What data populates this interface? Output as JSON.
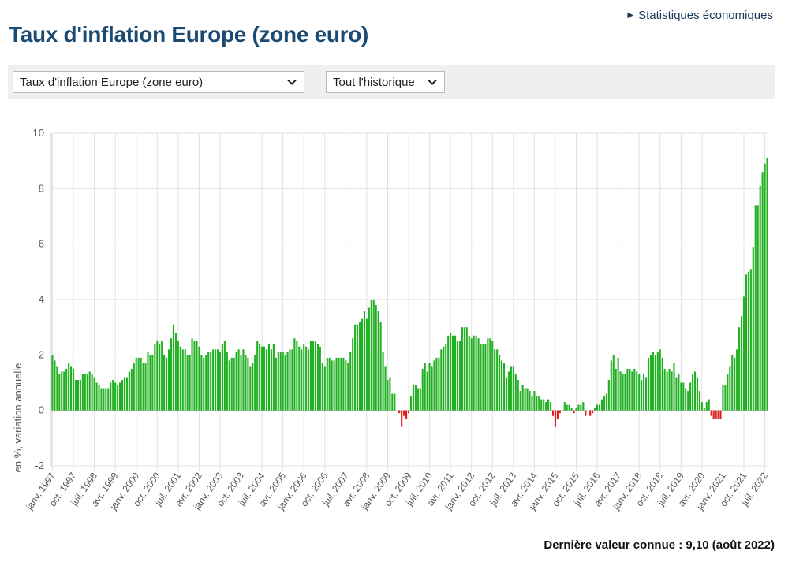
{
  "header": {
    "link_label": "Statistiques économiques",
    "title": "Taux d'inflation Europe (zone euro)"
  },
  "toolbar": {
    "indicator_select": "Taux d'inflation Europe (zone euro)",
    "period_select": "Tout l'historique"
  },
  "footer": {
    "last_value": "Dernière valeur connue : 9,10 (août 2022)"
  },
  "colors": {
    "positive": "#21b021",
    "negative": "#e41a1a"
  },
  "chart_data": {
    "type": "bar",
    "title": "Taux d'inflation Europe (zone euro)",
    "ylabel": "en %, variation annuelle",
    "xlabel": "",
    "ylim": [
      -2,
      10
    ],
    "yticks": [
      -2,
      0,
      2,
      4,
      6,
      8,
      10
    ],
    "start": "1997-01",
    "x_tick_labels": [
      "janv. 1997",
      "oct. 1997",
      "juil. 1998",
      "avr. 1999",
      "janv. 2000",
      "oct. 2000",
      "juil. 2001",
      "avr. 2002",
      "janv. 2003",
      "oct. 2003",
      "juil. 2004",
      "avr. 2005",
      "janv. 2006",
      "oct. 2006",
      "juil. 2007",
      "avr. 2008",
      "janv. 2009",
      "oct. 2009",
      "juil. 2010",
      "avr. 2011",
      "janv. 2012",
      "oct. 2012",
      "juil. 2013",
      "avr. 2014",
      "janv. 2015",
      "oct. 2015",
      "juil. 2016",
      "avr. 2017",
      "janv. 2018",
      "oct. 2018",
      "juil. 2019",
      "avr. 2020",
      "janv. 2021",
      "oct. 2021",
      "juil. 2022"
    ],
    "series": [
      {
        "name": "Taux d'inflation (en %, variation annuelle)",
        "values": [
          2.0,
          1.8,
          1.6,
          1.3,
          1.4,
          1.4,
          1.5,
          1.7,
          1.6,
          1.5,
          1.1,
          1.1,
          1.1,
          1.3,
          1.3,
          1.3,
          1.4,
          1.3,
          1.2,
          1.0,
          0.9,
          0.8,
          0.8,
          0.8,
          0.8,
          1.0,
          1.1,
          1.0,
          0.9,
          1.0,
          1.1,
          1.2,
          1.2,
          1.4,
          1.5,
          1.7,
          1.9,
          1.9,
          1.9,
          1.7,
          1.7,
          2.1,
          2.0,
          2.0,
          2.4,
          2.5,
          2.4,
          2.5,
          2.0,
          1.9,
          2.2,
          2.6,
          3.1,
          2.8,
          2.5,
          2.3,
          2.2,
          2.2,
          2.0,
          2.0,
          2.6,
          2.5,
          2.5,
          2.3,
          2.0,
          1.9,
          2.0,
          2.1,
          2.1,
          2.2,
          2.2,
          2.2,
          2.1,
          2.4,
          2.5,
          2.1,
          1.8,
          1.9,
          1.9,
          2.1,
          2.2,
          2.0,
          2.2,
          2.0,
          1.9,
          1.6,
          1.7,
          2.0,
          2.5,
          2.4,
          2.3,
          2.3,
          2.2,
          2.4,
          2.2,
          2.4,
          1.9,
          2.1,
          2.1,
          2.1,
          2.0,
          2.1,
          2.2,
          2.2,
          2.6,
          2.5,
          2.3,
          2.2,
          2.4,
          2.3,
          2.2,
          2.5,
          2.5,
          2.5,
          2.4,
          2.3,
          1.7,
          1.6,
          1.9,
          1.9,
          1.8,
          1.8,
          1.9,
          1.9,
          1.9,
          1.9,
          1.8,
          1.7,
          2.1,
          2.6,
          3.1,
          3.1,
          3.2,
          3.3,
          3.6,
          3.3,
          3.7,
          4.0,
          4.0,
          3.8,
          3.6,
          3.2,
          2.1,
          1.6,
          1.1,
          1.2,
          0.6,
          0.6,
          0.0,
          -0.1,
          -0.6,
          -0.2,
          -0.3,
          -0.1,
          0.5,
          0.9,
          0.9,
          0.8,
          0.8,
          1.5,
          1.7,
          1.4,
          1.7,
          1.6,
          1.8,
          1.9,
          1.9,
          2.2,
          2.3,
          2.4,
          2.7,
          2.8,
          2.7,
          2.7,
          2.5,
          2.5,
          3.0,
          3.0,
          3.0,
          2.7,
          2.6,
          2.7,
          2.7,
          2.6,
          2.4,
          2.4,
          2.4,
          2.6,
          2.6,
          2.5,
          2.2,
          2.2,
          2.0,
          1.8,
          1.7,
          1.2,
          1.4,
          1.6,
          1.6,
          1.3,
          1.1,
          0.7,
          0.9,
          0.8,
          0.8,
          0.7,
          0.5,
          0.7,
          0.5,
          0.5,
          0.4,
          0.4,
          0.3,
          0.4,
          0.3,
          -0.2,
          -0.6,
          -0.3,
          -0.1,
          0.0,
          0.3,
          0.2,
          0.2,
          0.1,
          -0.1,
          0.1,
          0.2,
          0.2,
          0.3,
          -0.2,
          0.0,
          -0.2,
          -0.1,
          0.1,
          0.2,
          0.2,
          0.4,
          0.5,
          0.6,
          1.1,
          1.8,
          2.0,
          1.5,
          1.9,
          1.4,
          1.3,
          1.3,
          1.5,
          1.5,
          1.4,
          1.5,
          1.4,
          1.3,
          1.1,
          1.3,
          1.2,
          1.9,
          2.0,
          2.1,
          2.0,
          2.1,
          2.2,
          1.9,
          1.5,
          1.4,
          1.5,
          1.4,
          1.7,
          1.2,
          1.3,
          1.0,
          1.0,
          0.8,
          0.7,
          1.0,
          1.3,
          1.4,
          1.2,
          0.7,
          0.3,
          0.1,
          0.3,
          0.4,
          -0.2,
          -0.3,
          -0.3,
          -0.3,
          -0.3,
          0.9,
          0.9,
          1.3,
          1.6,
          2.0,
          1.9,
          2.2,
          3.0,
          3.4,
          4.1,
          4.9,
          5.0,
          5.1,
          5.9,
          7.4,
          7.4,
          8.1,
          8.6,
          8.9,
          9.1
        ]
      }
    ]
  }
}
